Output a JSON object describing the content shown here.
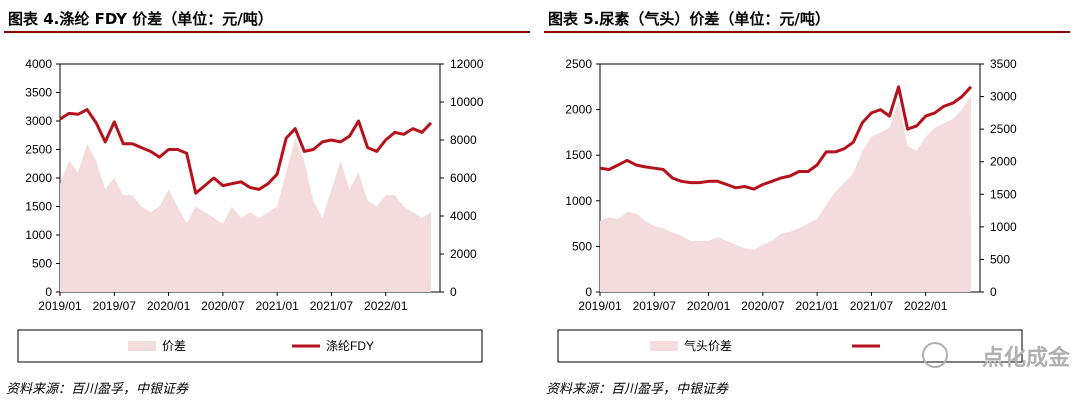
{
  "chart_data": [
    {
      "type": "area+line",
      "title": "图表 4.涤纶 FDY 价差（单位：元/吨）",
      "source": "资料来源：百川盈孚，中银证券",
      "x_ticks": [
        "2019/01",
        "2019/07",
        "2020/01",
        "2020/07",
        "2021/01",
        "2021/07",
        "2022/01"
      ],
      "x_range": [
        "2019/01",
        "2022/07"
      ],
      "y_left": {
        "ticks": [
          "0",
          "500",
          "1000",
          "1500",
          "2000",
          "2500",
          "3000",
          "3500",
          "4000"
        ],
        "min": 0,
        "max": 4000
      },
      "y_right": {
        "ticks": [
          "0",
          "2000",
          "4000",
          "6000",
          "8000",
          "10000",
          "12000"
        ],
        "min": 0,
        "max": 12000
      },
      "legend_position": "bottom",
      "series": [
        {
          "name": "价差",
          "kind": "area",
          "axis": "left",
          "color": "#f5dcdc",
          "x": [
            "2019/01",
            "2019/02",
            "2019/03",
            "2019/04",
            "2019/05",
            "2019/06",
            "2019/07",
            "2019/08",
            "2019/09",
            "2019/10",
            "2019/11",
            "2019/12",
            "2020/01",
            "2020/02",
            "2020/03",
            "2020/04",
            "2020/05",
            "2020/06",
            "2020/07",
            "2020/08",
            "2020/09",
            "2020/10",
            "2020/11",
            "2020/12",
            "2021/01",
            "2021/02",
            "2021/03",
            "2021/04",
            "2021/05",
            "2021/06",
            "2021/07",
            "2021/08",
            "2021/09",
            "2021/10",
            "2021/11",
            "2021/12",
            "2022/01",
            "2022/02",
            "2022/03",
            "2022/04",
            "2022/05",
            "2022/06"
          ],
          "values": [
            1900,
            2300,
            2100,
            2600,
            2300,
            1800,
            2000,
            1700,
            1700,
            1500,
            1400,
            1500,
            1800,
            1500,
            1200,
            1500,
            1400,
            1300,
            1200,
            1500,
            1300,
            1400,
            1300,
            1400,
            1500,
            2100,
            2700,
            2300,
            1600,
            1300,
            1800,
            2300,
            1800,
            2100,
            1600,
            1500,
            1700,
            1700,
            1500,
            1400,
            1300,
            1400
          ]
        },
        {
          "name": "涤纶FDY",
          "kind": "line",
          "axis": "right",
          "color": "#b5121b",
          "x": [
            "2019/01",
            "2019/02",
            "2019/03",
            "2019/04",
            "2019/05",
            "2019/06",
            "2019/07",
            "2019/08",
            "2019/09",
            "2019/10",
            "2019/11",
            "2019/12",
            "2020/01",
            "2020/02",
            "2020/03",
            "2020/04",
            "2020/05",
            "2020/06",
            "2020/07",
            "2020/08",
            "2020/09",
            "2020/10",
            "2020/11",
            "2020/12",
            "2021/01",
            "2021/02",
            "2021/03",
            "2021/04",
            "2021/05",
            "2021/06",
            "2021/07",
            "2021/08",
            "2021/09",
            "2021/10",
            "2021/11",
            "2021/12",
            "2022/01",
            "2022/02",
            "2022/03",
            "2022/04",
            "2022/05",
            "2022/06"
          ],
          "values": [
            9100,
            9400,
            9350,
            9600,
            8900,
            7900,
            8950,
            7800,
            7800,
            7600,
            7400,
            7100,
            7500,
            7500,
            7300,
            5200,
            5600,
            6000,
            5600,
            5700,
            5800,
            5500,
            5400,
            5700,
            6200,
            8100,
            8600,
            7400,
            7500,
            7900,
            8000,
            7900,
            8200,
            9000,
            7600,
            7400,
            8000,
            8400,
            8300,
            8600,
            8400,
            8900
          ]
        }
      ]
    },
    {
      "type": "area+line",
      "title": "图表 5.尿素（气头）价差（单位：元/吨）",
      "source": "资料来源：百川盈孚，中银证券",
      "x_ticks": [
        "2019/01",
        "2019/07",
        "2020/01",
        "2020/07",
        "2021/01",
        "2021/07",
        "2022/01"
      ],
      "x_range": [
        "2019/01",
        "2022/07"
      ],
      "y_left": {
        "ticks": [
          "0",
          "500",
          "1000",
          "1500",
          "2000",
          "2500"
        ],
        "min": 0,
        "max": 2500
      },
      "y_right": {
        "ticks": [
          "0",
          "500",
          "1000",
          "1500",
          "2000",
          "2500",
          "3000",
          "3500"
        ],
        "min": 0,
        "max": 3500
      },
      "legend_position": "bottom",
      "series": [
        {
          "name": "气头价差",
          "kind": "area",
          "axis": "left",
          "color": "#f5dcdc",
          "x": [
            "2019/01",
            "2019/02",
            "2019/03",
            "2019/04",
            "2019/05",
            "2019/06",
            "2019/07",
            "2019/08",
            "2019/09",
            "2019/10",
            "2019/11",
            "2019/12",
            "2020/01",
            "2020/02",
            "2020/03",
            "2020/04",
            "2020/05",
            "2020/06",
            "2020/07",
            "2020/08",
            "2020/09",
            "2020/10",
            "2020/11",
            "2020/12",
            "2021/01",
            "2021/02",
            "2021/03",
            "2021/04",
            "2021/05",
            "2021/06",
            "2021/07",
            "2021/08",
            "2021/09",
            "2021/10",
            "2021/11",
            "2021/12",
            "2022/01",
            "2022/02",
            "2022/03",
            "2022/04",
            "2022/05",
            "2022/06"
          ],
          "values": [
            780,
            820,
            800,
            880,
            860,
            780,
            720,
            700,
            650,
            620,
            560,
            560,
            560,
            600,
            560,
            520,
            480,
            460,
            520,
            560,
            640,
            660,
            700,
            750,
            800,
            950,
            1100,
            1200,
            1300,
            1550,
            1700,
            1750,
            1800,
            2100,
            1600,
            1550,
            1700,
            1800,
            1850,
            1900,
            2000,
            2150
          ]
        },
        {
          "name": "",
          "kind": "line",
          "axis": "right",
          "color": "#b5121b",
          "x": [
            "2019/01",
            "2019/02",
            "2019/03",
            "2019/04",
            "2019/05",
            "2019/06",
            "2019/07",
            "2019/08",
            "2019/09",
            "2019/10",
            "2019/11",
            "2019/12",
            "2020/01",
            "2020/02",
            "2020/03",
            "2020/04",
            "2020/05",
            "2020/06",
            "2020/07",
            "2020/08",
            "2020/09",
            "2020/10",
            "2020/11",
            "2020/12",
            "2021/01",
            "2021/02",
            "2021/03",
            "2021/04",
            "2021/05",
            "2021/06",
            "2021/07",
            "2021/08",
            "2021/09",
            "2021/10",
            "2021/11",
            "2021/12",
            "2022/01",
            "2022/02",
            "2022/03",
            "2022/04",
            "2022/05",
            "2022/06"
          ],
          "values": [
            1900,
            1880,
            1950,
            2020,
            1950,
            1920,
            1900,
            1880,
            1750,
            1700,
            1680,
            1680,
            1700,
            1700,
            1650,
            1600,
            1620,
            1580,
            1650,
            1700,
            1750,
            1780,
            1850,
            1850,
            1950,
            2150,
            2150,
            2200,
            2300,
            2600,
            2750,
            2800,
            2700,
            3150,
            2500,
            2550,
            2700,
            2750,
            2850,
            2900,
            3000,
            3150
          ]
        }
      ]
    }
  ],
  "watermark": "点化成金"
}
